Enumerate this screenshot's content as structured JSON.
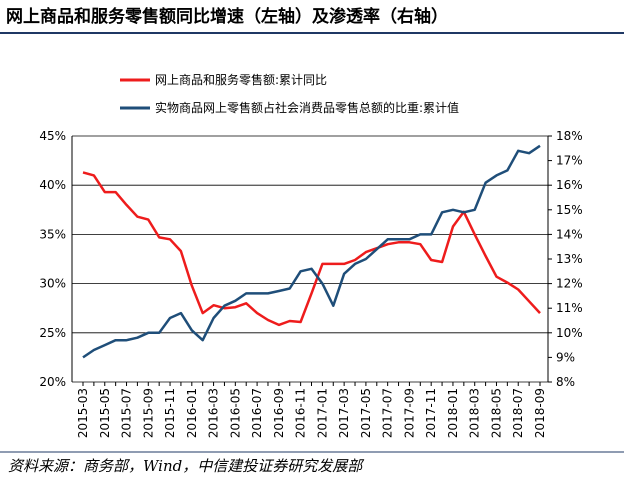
{
  "chart_data": {
    "type": "line",
    "title": "网上商品和服务零售额同比增速（左轴）及渗透率（右轴）",
    "source": "资料来源：商务部，Wind，中信建投证券研究发展部",
    "categories": [
      "2015-03",
      null,
      "2015-05",
      null,
      "2015-07",
      null,
      "2015-09",
      null,
      "2015-11",
      null,
      "2016-01",
      null,
      "2016-03",
      null,
      "2016-05",
      null,
      "2016-07",
      null,
      "2016-09",
      null,
      "2016-11",
      null,
      "2017-01",
      null,
      "2017-03",
      null,
      "2017-05",
      null,
      "2017-07",
      null,
      "2017-09",
      null,
      "2017-11",
      null,
      "2018-01",
      null,
      "2018-03",
      null,
      "2018-05",
      null,
      "2018-07",
      null,
      "2018-09"
    ],
    "series": [
      {
        "name": "网上商品和服务零售额:累计同比",
        "color": "#ee1c1c",
        "axis": "y",
        "values": [
          41.3,
          41,
          39.3,
          39.3,
          38,
          36.8,
          36.5,
          34.7,
          34.5,
          33.3,
          29.8,
          27,
          27.8,
          27.5,
          27.6,
          28,
          27,
          26.3,
          25.8,
          26.2,
          26.1,
          29,
          32,
          32,
          32,
          32.4,
          33.2,
          33.6,
          34,
          34.2,
          34.2,
          34,
          32.4,
          32.2,
          35.8,
          37.3,
          35,
          32.8,
          30.7,
          30.1,
          29.4,
          28.2,
          27
        ]
      },
      {
        "name": "实物商品网上零售额占社会消费品零售总额的比重:累计值",
        "color": "#1f4e79",
        "axis": "y2",
        "values": [
          9.0,
          9.3,
          9.5,
          9.7,
          9.7,
          9.8,
          10.0,
          10.0,
          10.6,
          10.8,
          10.1,
          9.7,
          10.6,
          11.1,
          11.3,
          11.6,
          11.6,
          11.6,
          11.7,
          11.8,
          12.5,
          12.6,
          12.0,
          11.1,
          12.4,
          12.8,
          13.0,
          13.4,
          13.8,
          13.8,
          13.8,
          14.0,
          14.0,
          14.9,
          15.0,
          14.9,
          15.0,
          16.1,
          16.4,
          16.6,
          17.4,
          17.3,
          17.6
        ]
      }
    ],
    "ylim": [
      20,
      45
    ],
    "yticks": [
      {
        "value": 20,
        "label": "20%"
      },
      {
        "value": 25,
        "label": "25%"
      },
      {
        "value": 30,
        "label": "30%"
      },
      {
        "value": 35,
        "label": "35%"
      },
      {
        "value": 40,
        "label": "40%"
      },
      {
        "value": 45,
        "label": "45%"
      }
    ],
    "y2lim": [
      8,
      18
    ],
    "y2ticks": [
      {
        "value": 8,
        "label": "8%"
      },
      {
        "value": 9,
        "label": "9%"
      },
      {
        "value": 10,
        "label": "10%"
      },
      {
        "value": 11,
        "label": "11%"
      },
      {
        "value": 12,
        "label": "12%"
      },
      {
        "value": 13,
        "label": "13%"
      },
      {
        "value": 14,
        "label": "14%"
      },
      {
        "value": 15,
        "label": "15%"
      },
      {
        "value": 16,
        "label": "16%"
      },
      {
        "value": 17,
        "label": "17%"
      },
      {
        "value": 18,
        "label": "18%"
      }
    ],
    "grid": true,
    "legend": "top"
  }
}
